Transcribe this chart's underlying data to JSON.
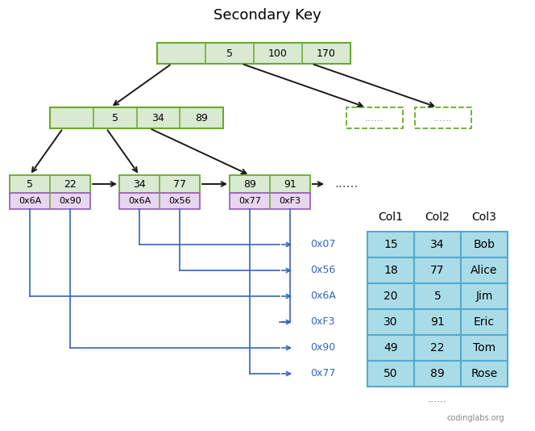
{
  "title": "Secondary Key",
  "title_fontsize": 13,
  "bg_color": "#ffffff",
  "node_fill_green": "#d9ead3",
  "node_fill_purple": "#e8d5f0",
  "node_border_green": "#6aaa2a",
  "node_border_purple": "#9966bb",
  "table_fill": "#aadce8",
  "table_border": "#55aacc",
  "arrow_color_black": "#1a1a1a",
  "arrow_color_blue": "#3366bb",
  "root_values": [
    "5",
    "100",
    "170"
  ],
  "level2_values": [
    "5",
    "34",
    "89"
  ],
  "leaf_nodes": [
    {
      "key_vals": [
        "5",
        "22"
      ],
      "ptr_vals": [
        "0x6A",
        "0x90"
      ]
    },
    {
      "key_vals": [
        "34",
        "77"
      ],
      "ptr_vals": [
        "0x6A",
        "0x56"
      ]
    },
    {
      "key_vals": [
        "89",
        "91"
      ],
      "ptr_vals": [
        "0x77",
        "0xF3"
      ]
    }
  ],
  "table_headers": [
    "Col1",
    "Col2",
    "Col3"
  ],
  "table_rows": [
    [
      "15",
      "34",
      "Bob"
    ],
    [
      "18",
      "77",
      "Alice"
    ],
    [
      "20",
      "5",
      "Jim"
    ],
    [
      "30",
      "91",
      "Eric"
    ],
    [
      "49",
      "22",
      "Tom"
    ],
    [
      "50",
      "89",
      "Rose"
    ]
  ],
  "ptr_labels": [
    "0x07",
    "0x56",
    "0x6A",
    "0xF3",
    "0x90",
    "0x77"
  ],
  "watermark": "codinglabs.org"
}
